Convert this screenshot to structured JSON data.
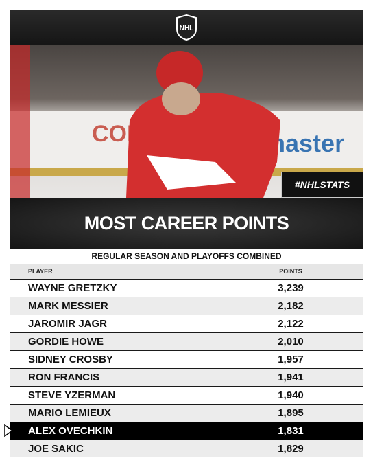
{
  "header": {
    "logo": "NHL"
  },
  "photo": {
    "board_texts": [
      "COLD",
      "master"
    ],
    "badge": "#NHLSTATS"
  },
  "title": "MOST CAREER POINTS",
  "subtitle": "REGULAR SEASON AND PLAYOFFS COMBINED",
  "table": {
    "columns": [
      "PLAYER",
      "POINTS"
    ],
    "rows": [
      [
        "WAYNE GRETZKY",
        "3,239"
      ],
      [
        "MARK MESSIER",
        "2,182"
      ],
      [
        "JAROMIR JAGR",
        "2,122"
      ],
      [
        "GORDIE HOWE",
        "2,010"
      ],
      [
        "SIDNEY CROSBY",
        "1,957"
      ],
      [
        "RON FRANCIS",
        "1,941"
      ],
      [
        "STEVE YZERMAN",
        "1,940"
      ],
      [
        "MARIO LEMIEUX",
        "1,895"
      ],
      [
        "ALEX OVECHKIN",
        "1,831"
      ],
      [
        "JOE SAKIC",
        "1,829"
      ]
    ]
  }
}
